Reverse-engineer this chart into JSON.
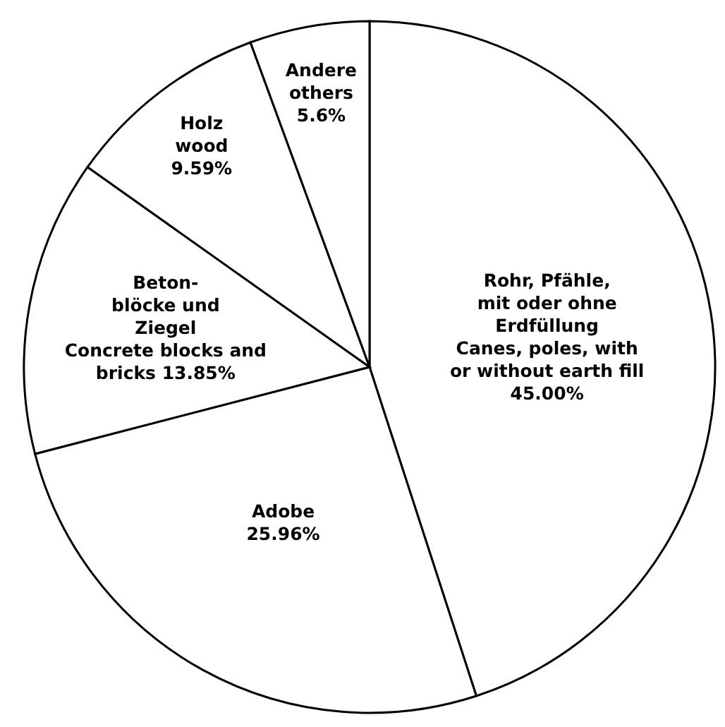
{
  "chart_data": {
    "type": "pie",
    "categories": [
      "Rohr, Pfähle,\nmit oder ohne\nErdfüllung\nCanes, poles, with\nor without earth fill",
      "Adobe",
      "Beton-\nblöcke und\nZiegel\nConcrete blocks and\nbricks",
      "Holz\nwood",
      "Andere\nothers"
    ],
    "values": [
      45.0,
      25.96,
      13.85,
      9.59,
      5.6
    ],
    "value_labels": [
      "45.00%",
      "25.96%",
      "13.85%",
      "9.59%",
      "5.6%"
    ],
    "colors": [
      "#ffffff",
      "#ffffff",
      "#ffffff",
      "#ffffff",
      "#ffffff"
    ]
  }
}
